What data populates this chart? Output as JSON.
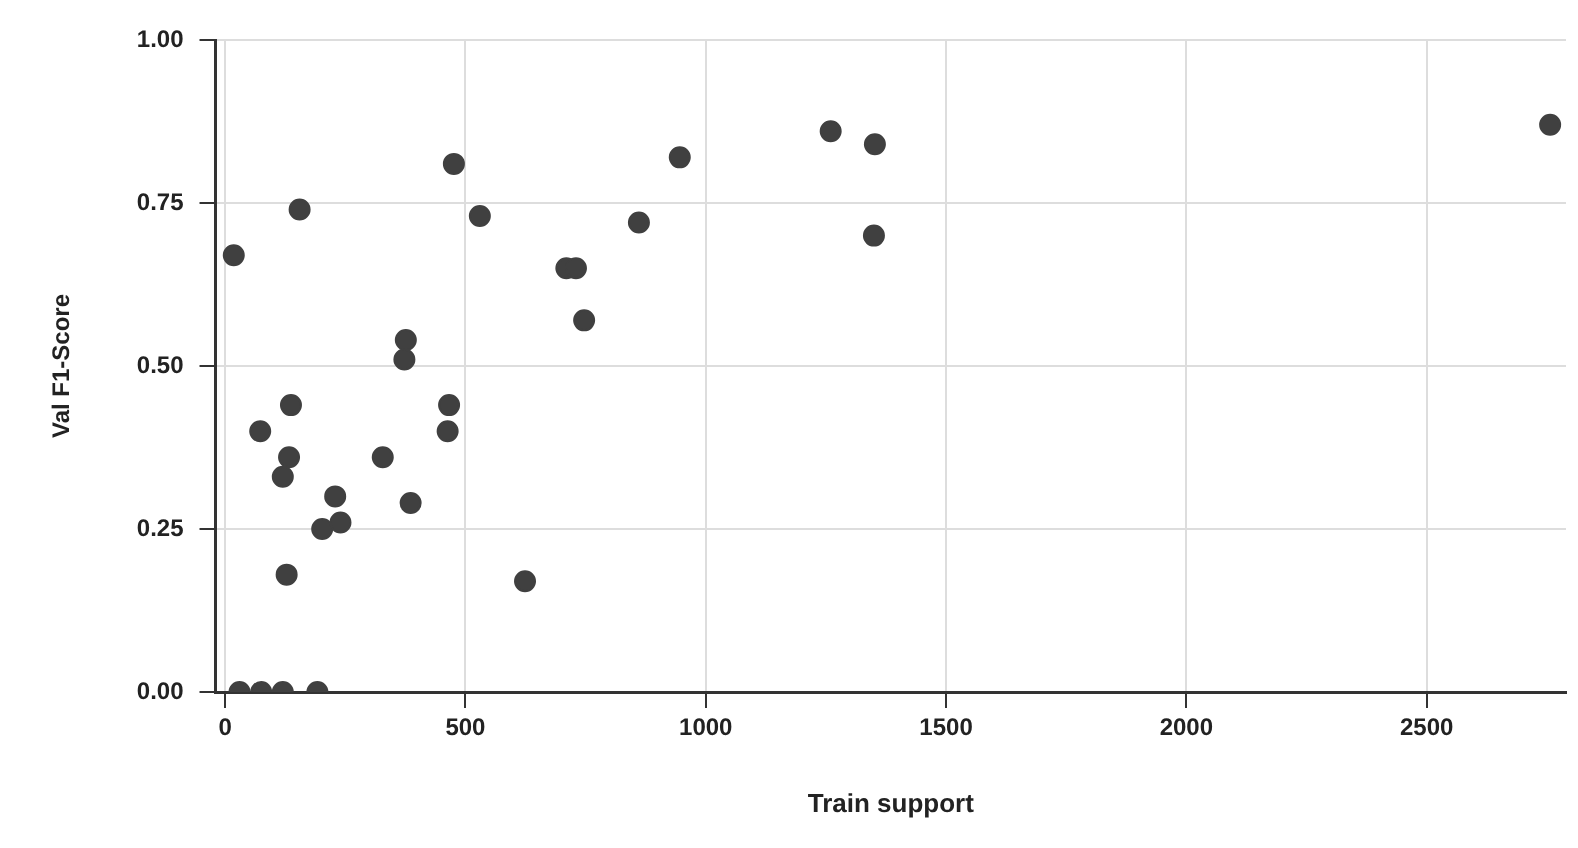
{
  "chart_data": {
    "type": "scatter",
    "xlabel": "Train support",
    "ylabel": "Val F1-Score",
    "marker": "circle",
    "grid": true,
    "xlim": [
      -20,
      2790
    ],
    "xticks": [
      0,
      500,
      1000,
      1500,
      2000,
      2500
    ],
    "ylim": [
      0,
      1
    ],
    "yticks": [
      {
        "value": 0,
        "label": "0.00"
      },
      {
        "value": 0.25,
        "label": "0.25"
      },
      {
        "value": 0.5,
        "label": "0.50"
      },
      {
        "value": 0.75,
        "label": "0.75"
      },
      {
        "value": 1,
        "label": "1.00"
      }
    ],
    "series": [
      {
        "color": "#404040",
        "x": [
          18,
          155,
          476,
          530,
          946,
          861,
          710,
          730,
          747,
          376,
          373,
          137,
          466,
          73,
          463,
          133,
          328,
          120,
          229,
          386,
          202,
          240,
          128,
          624,
          30,
          75,
          120,
          192,
          1260,
          1352,
          1350,
          2757
        ],
        "values": [
          0.67,
          0.74,
          0.81,
          0.73,
          0.82,
          0.72,
          0.65,
          0.65,
          0.57,
          0.54,
          0.51,
          0.44,
          0.44,
          0.4,
          0.4,
          0.36,
          0.36,
          0.33,
          0.3,
          0.29,
          0.25,
          0.26,
          0.18,
          0.17,
          0,
          0,
          0,
          0,
          0.86,
          0.84,
          0.7,
          0.87
        ]
      }
    ]
  }
}
